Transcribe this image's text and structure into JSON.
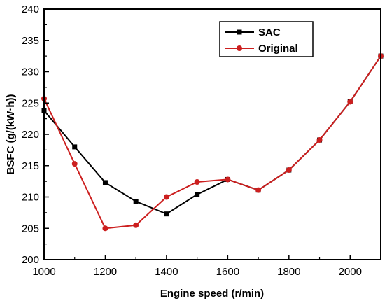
{
  "chart_data": {
    "type": "line",
    "xlabel": "Engine speed (r/min)",
    "ylabel": "BSFC (g/(kW·h))",
    "xlim": [
      1000,
      2100
    ],
    "ylim": [
      200,
      240
    ],
    "xticks": [
      1000,
      1200,
      1400,
      1600,
      1800,
      2000
    ],
    "yticks": [
      200,
      205,
      210,
      215,
      220,
      225,
      230,
      235,
      240
    ],
    "legend_position": "top-right",
    "grid": false,
    "series": [
      {
        "name": "SAC",
        "color": "#000000",
        "marker": "square",
        "x": [
          1000,
          1100,
          1200,
          1300,
          1400,
          1500,
          1600,
          1700,
          1800,
          1900,
          2000,
          2100
        ],
        "y": [
          223.8,
          218.0,
          212.3,
          209.3,
          207.3,
          210.4,
          212.8,
          211.1,
          214.3,
          219.1,
          225.2,
          232.5
        ]
      },
      {
        "name": "Original",
        "color": "#cc1f1f",
        "marker": "circle",
        "x": [
          1000,
          1100,
          1200,
          1300,
          1400,
          1500,
          1600,
          1700,
          1800,
          1900,
          2000,
          2100
        ],
        "y": [
          225.7,
          215.3,
          205.0,
          205.5,
          210.0,
          212.4,
          212.8,
          211.1,
          214.3,
          219.1,
          225.2,
          232.5
        ]
      }
    ]
  }
}
